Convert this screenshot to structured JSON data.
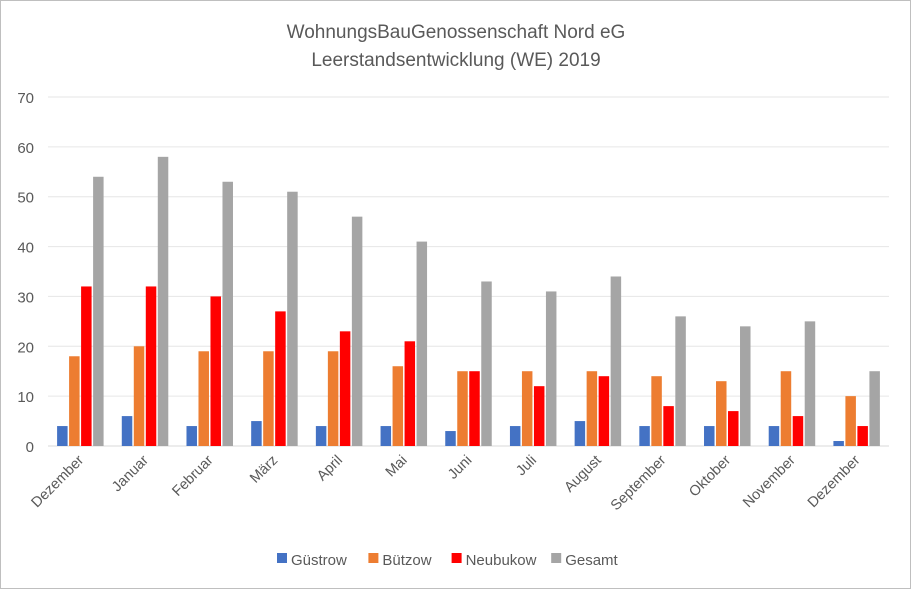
{
  "chart_data": {
    "type": "bar",
    "title": "WohnungsBauGenossenschaft Nord eG",
    "subtitle": "Leerstandsentwicklung (WE) 2019",
    "categories": [
      "Dezember",
      "Januar",
      "Februar",
      "März",
      "April",
      "Mai",
      "Juni",
      "Juli",
      "August",
      "September",
      "Oktober",
      "November",
      "Dezember"
    ],
    "series": [
      {
        "name": "Güstrow",
        "color": "#4472c4",
        "values": [
          4,
          6,
          4,
          5,
          4,
          4,
          3,
          4,
          5,
          4,
          4,
          4,
          1
        ]
      },
      {
        "name": "Bützow",
        "color": "#ed7d31",
        "values": [
          18,
          20,
          19,
          19,
          19,
          16,
          15,
          15,
          15,
          14,
          13,
          15,
          10
        ]
      },
      {
        "name": "Neubukow",
        "color": "#ff0000",
        "values": [
          32,
          32,
          30,
          27,
          23,
          21,
          15,
          12,
          14,
          8,
          7,
          6,
          4
        ]
      },
      {
        "name": "Gesamt",
        "color": "#a5a5a5",
        "values": [
          54,
          58,
          53,
          51,
          46,
          41,
          33,
          31,
          34,
          26,
          24,
          25,
          15
        ]
      }
    ],
    "ylim": [
      0,
      70
    ],
    "yticks": [
      0,
      10,
      20,
      30,
      40,
      50,
      60,
      70
    ],
    "grid": true,
    "legend": "bottom"
  }
}
